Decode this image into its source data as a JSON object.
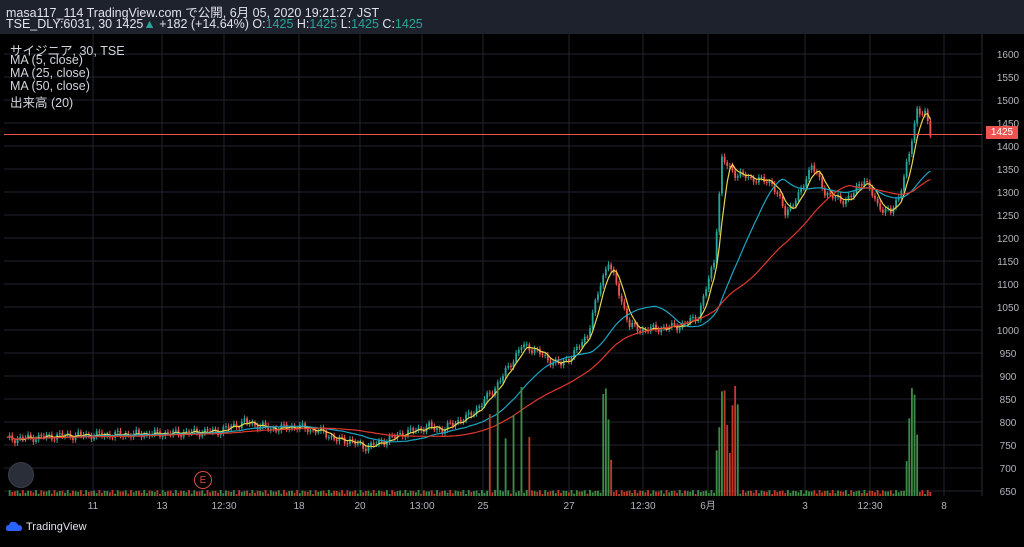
{
  "header": {
    "line1": "masa117_114 TradingView.com で公開, 6月 05, 2020 19:21:27 JST",
    "symbol_prefix": "TSE_DLY:6031, 30",
    "last": "1425",
    "change_arrow": "▲",
    "change": "+182 (+14.64%)",
    "o_label": "O:",
    "o": "1425",
    "h_label": "H:",
    "h": "1425",
    "l_label": "L:",
    "l": "1425",
    "c_label": "C:",
    "c": "1425"
  },
  "legend": {
    "title": "サイジニア, 30, TSE",
    "ma5": "MA (5, close)",
    "ma25": "MA (25, close)",
    "ma50": "MA (50, close)",
    "volume": "出来高 (20)"
  },
  "price_tag": "1425",
  "earnings_badge": "E",
  "footer": {
    "brand": "TradingView"
  },
  "colors": {
    "up": "#26a69a",
    "down": "#ef5350",
    "ma5": "#e8d44d",
    "ma25": "#1ba4c4",
    "ma50": "#e0392b",
    "volume_up": "#3d8b46",
    "volume_down": "#c0392b",
    "background": "#000000",
    "grid": "#1f2530"
  },
  "chart_data": {
    "type": "candlestick",
    "ylim": [
      640,
      1620
    ],
    "y_ticks": [
      650,
      700,
      750,
      800,
      850,
      900,
      950,
      1000,
      1050,
      1100,
      1150,
      1200,
      1250,
      1300,
      1350,
      1400,
      1450,
      1500,
      1550,
      1600
    ],
    "x_tick_labels": [
      "11",
      "13",
      "12:30",
      "18",
      "20",
      "13:00",
      "25",
      "27",
      "12:30",
      "6月",
      "3",
      "12:30",
      "8"
    ],
    "last_price_line": 1425,
    "grid": true,
    "ma_overlays": [
      "MA (5, close)",
      "MA (25, close)",
      "MA (50, close)"
    ],
    "volume_indicator": "出来高 (20)"
  }
}
